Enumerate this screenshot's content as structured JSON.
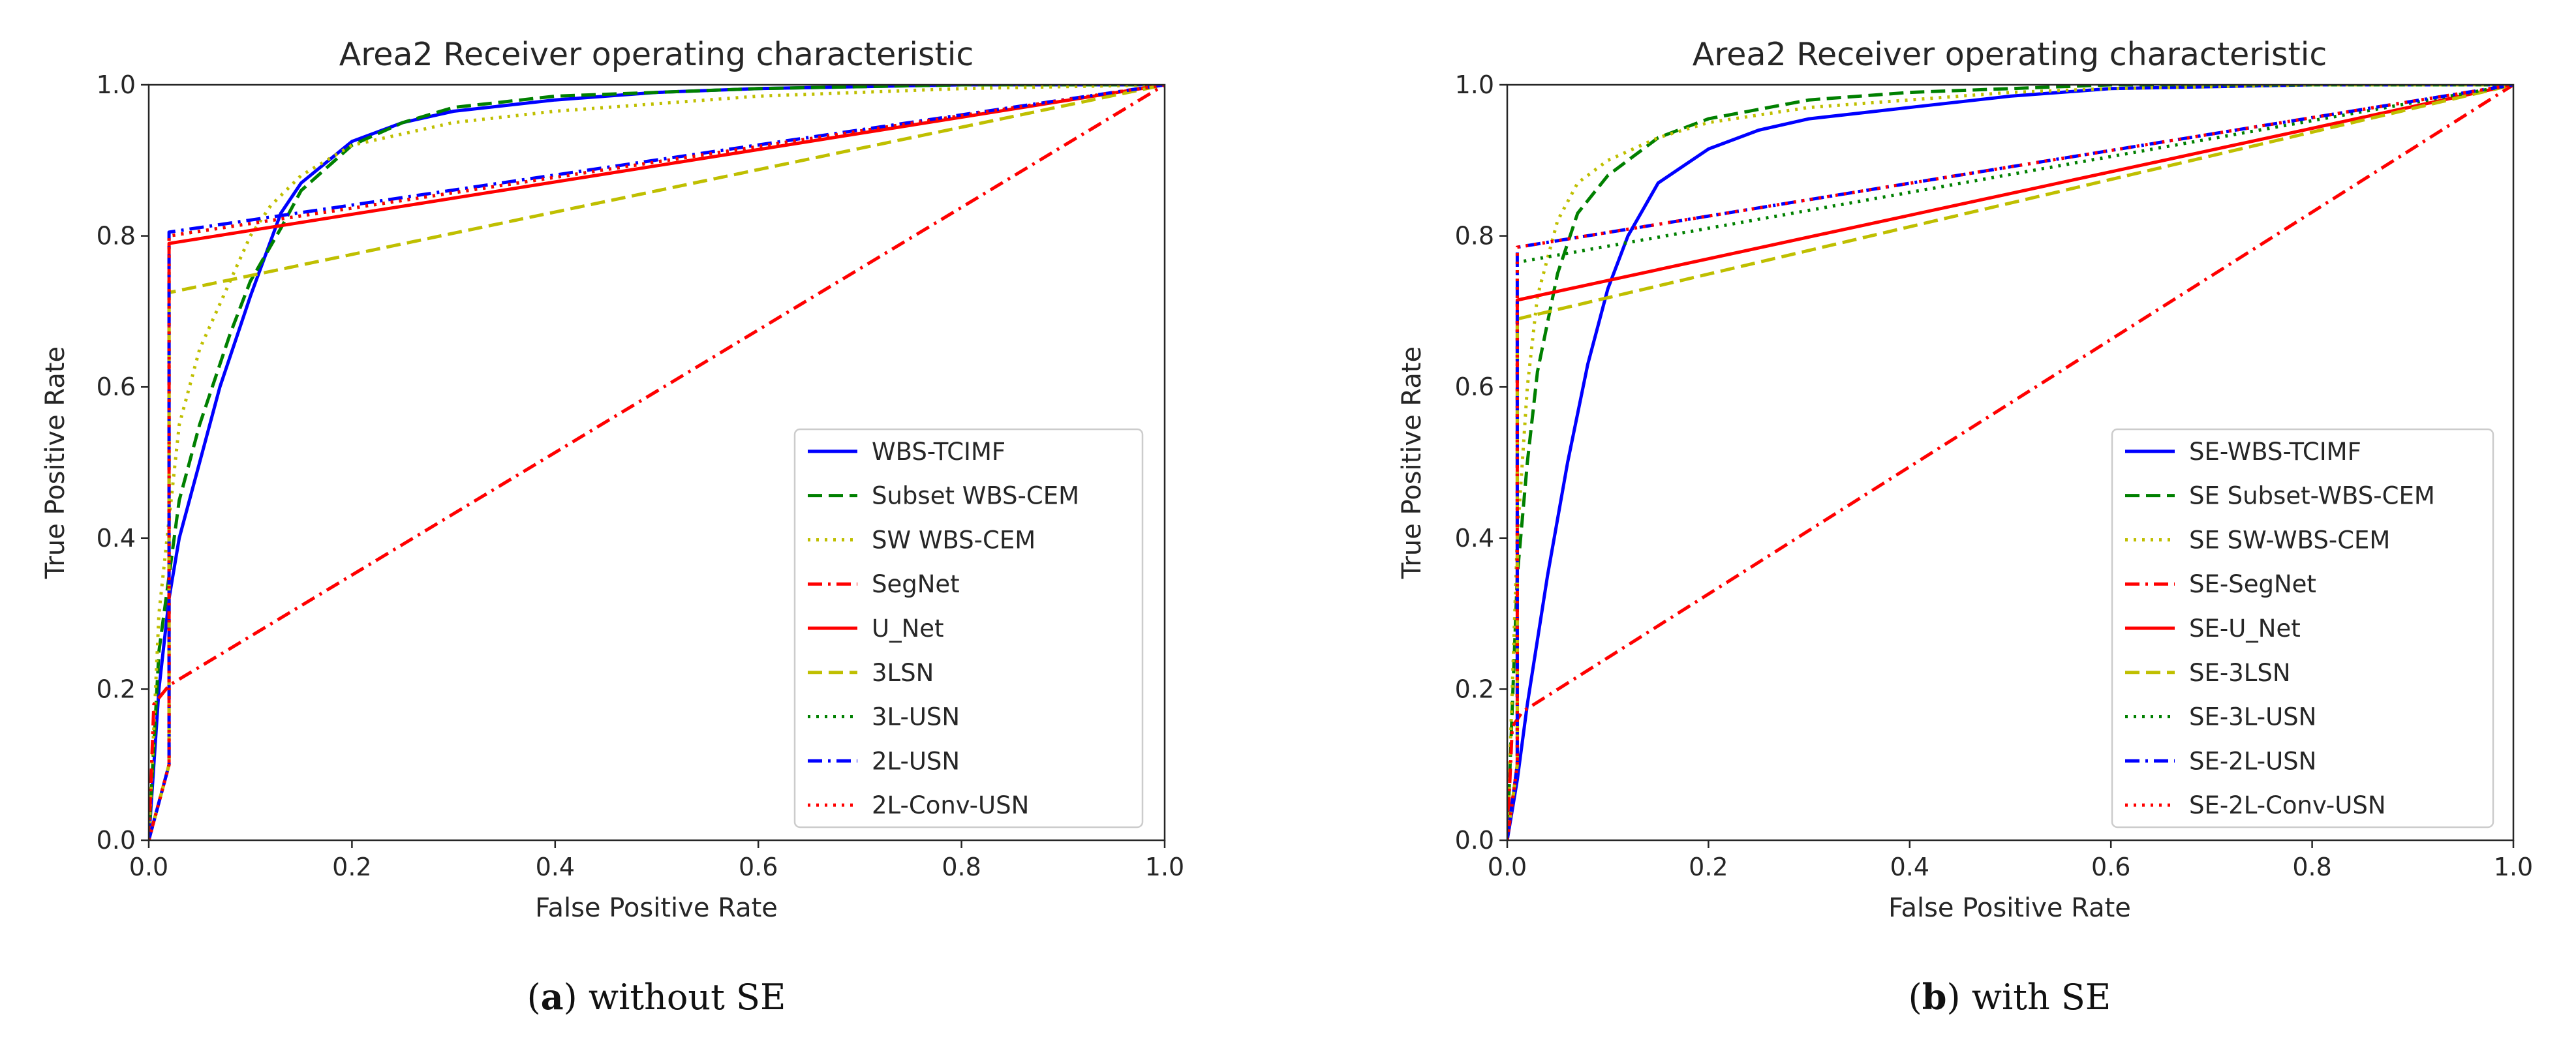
{
  "chart_data": [
    {
      "type": "line",
      "title": "Area2 Receiver operating characteristic",
      "xlabel": "False Positive Rate",
      "ylabel": "True Positive Rate",
      "xlim": [
        0,
        1
      ],
      "ylim": [
        0,
        1
      ],
      "xticks": [
        "0.0",
        "0.2",
        "0.4",
        "0.6",
        "0.8",
        "1.0"
      ],
      "yticks": [
        "0.0",
        "0.2",
        "0.4",
        "0.6",
        "0.8",
        "1.0"
      ],
      "legend_loc": "lower-right",
      "caption": {
        "label": "a",
        "text": " without SE"
      },
      "series": [
        {
          "name": "WBS-TCIMF",
          "color": "#0000ff",
          "dash": "solid",
          "x": [
            0,
            0.01,
            0.02,
            0.03,
            0.05,
            0.07,
            0.1,
            0.13,
            0.15,
            0.2,
            0.25,
            0.3,
            0.4,
            0.5,
            0.6,
            0.8,
            1
          ],
          "y": [
            0,
            0.2,
            0.32,
            0.4,
            0.5,
            0.6,
            0.72,
            0.83,
            0.87,
            0.925,
            0.95,
            0.965,
            0.98,
            0.99,
            0.995,
            1,
            1
          ]
        },
        {
          "name": "Subset WBS-CEM",
          "color": "#008000",
          "dash": "dashed",
          "x": [
            0,
            0.01,
            0.03,
            0.05,
            0.08,
            0.1,
            0.13,
            0.15,
            0.2,
            0.25,
            0.3,
            0.4,
            0.5,
            0.6,
            0.8,
            1
          ],
          "y": [
            0,
            0.25,
            0.45,
            0.55,
            0.67,
            0.74,
            0.81,
            0.86,
            0.92,
            0.95,
            0.97,
            0.985,
            0.99,
            0.995,
            1,
            1
          ]
        },
        {
          "name": "SW WBS-CEM",
          "color": "#bfbf00",
          "dash": "dotted",
          "x": [
            0,
            0.01,
            0.03,
            0.05,
            0.08,
            0.1,
            0.12,
            0.15,
            0.2,
            0.3,
            0.4,
            0.5,
            0.6,
            0.8,
            1
          ],
          "y": [
            0,
            0.3,
            0.55,
            0.65,
            0.74,
            0.8,
            0.84,
            0.88,
            0.92,
            0.95,
            0.965,
            0.975,
            0.985,
            0.995,
            1
          ]
        },
        {
          "name": "SegNet",
          "color": "#ff0000",
          "dash": "dashdot",
          "x": [
            0,
            0.005,
            0.02,
            1
          ],
          "y": [
            0,
            0.18,
            0.205,
            1
          ]
        },
        {
          "name": "U_Net",
          "color": "#ff0000",
          "dash": "solid",
          "x": [
            0,
            0.02,
            0.02,
            1
          ],
          "y": [
            0,
            0.1,
            0.79,
            1
          ]
        },
        {
          "name": "3LSN",
          "color": "#bfbf00",
          "dash": "dashed",
          "x": [
            0,
            0.02,
            0.02,
            1
          ],
          "y": [
            0,
            0.1,
            0.725,
            1
          ]
        },
        {
          "name": "3L-USN",
          "color": "#008000",
          "dash": "dotted",
          "x": [
            0,
            0.02,
            0.02,
            1
          ],
          "y": [
            0,
            0.1,
            0.8,
            1
          ]
        },
        {
          "name": "2L-USN",
          "color": "#0000ff",
          "dash": "dashdot",
          "x": [
            0,
            0.02,
            0.02,
            1
          ],
          "y": [
            0,
            0.1,
            0.805,
            1
          ]
        },
        {
          "name": "2L-Conv-USN",
          "color": "#ff0000",
          "dash": "dotted",
          "x": [
            0,
            0.02,
            0.02,
            1
          ],
          "y": [
            0,
            0.1,
            0.8,
            1
          ]
        }
      ]
    },
    {
      "type": "line",
      "title": "Area2 Receiver operating characteristic",
      "xlabel": "False Positive Rate",
      "ylabel": "True Positive Rate",
      "xlim": [
        0,
        1
      ],
      "ylim": [
        0,
        1
      ],
      "xticks": [
        "0.0",
        "0.2",
        "0.4",
        "0.6",
        "0.8",
        "1.0"
      ],
      "yticks": [
        "0.0",
        "0.2",
        "0.4",
        "0.6",
        "0.8",
        "1.0"
      ],
      "legend_loc": "lower-right",
      "caption": {
        "label": "b",
        "text": " with SE"
      },
      "series": [
        {
          "name": "SE-WBS-TCIMF",
          "color": "#0000ff",
          "dash": "solid",
          "x": [
            0,
            0.01,
            0.02,
            0.04,
            0.06,
            0.08,
            0.1,
            0.12,
            0.15,
            0.2,
            0.25,
            0.3,
            0.4,
            0.5,
            0.6,
            0.8,
            1
          ],
          "y": [
            0,
            0.08,
            0.18,
            0.35,
            0.5,
            0.63,
            0.73,
            0.8,
            0.87,
            0.915,
            0.94,
            0.955,
            0.97,
            0.985,
            0.995,
            1,
            1
          ]
        },
        {
          "name": "SE Subset-WBS-CEM",
          "color": "#008000",
          "dash": "dashed",
          "x": [
            0,
            0.01,
            0.02,
            0.03,
            0.05,
            0.07,
            0.1,
            0.15,
            0.2,
            0.3,
            0.4,
            0.5,
            0.6,
            0.8,
            1
          ],
          "y": [
            0,
            0.35,
            0.5,
            0.62,
            0.75,
            0.83,
            0.88,
            0.93,
            0.955,
            0.98,
            0.99,
            0.995,
            1,
            1,
            1
          ]
        },
        {
          "name": "SE SW-WBS-CEM",
          "color": "#bfbf00",
          "dash": "dotted",
          "x": [
            0,
            0.01,
            0.02,
            0.03,
            0.05,
            0.07,
            0.1,
            0.15,
            0.2,
            0.3,
            0.4,
            0.5,
            0.6,
            0.8,
            1
          ],
          "y": [
            0,
            0.4,
            0.6,
            0.72,
            0.82,
            0.87,
            0.9,
            0.93,
            0.95,
            0.97,
            0.98,
            0.99,
            0.995,
            1,
            1
          ]
        },
        {
          "name": "SE-SegNet",
          "color": "#ff0000",
          "dash": "dashdot",
          "x": [
            0,
            0.005,
            0.015,
            1
          ],
          "y": [
            0,
            0.15,
            0.17,
            1
          ]
        },
        {
          "name": "SE-U_Net",
          "color": "#ff0000",
          "dash": "solid",
          "x": [
            0,
            0.01,
            0.01,
            1
          ],
          "y": [
            0,
            0.1,
            0.715,
            1
          ]
        },
        {
          "name": "SE-3LSN",
          "color": "#bfbf00",
          "dash": "dashed",
          "x": [
            0,
            0.01,
            0.01,
            1
          ],
          "y": [
            0,
            0.1,
            0.69,
            1
          ]
        },
        {
          "name": "SE-3L-USN",
          "color": "#008000",
          "dash": "dotted",
          "x": [
            0,
            0.01,
            0.01,
            1
          ],
          "y": [
            0,
            0.1,
            0.765,
            1
          ]
        },
        {
          "name": "SE-2L-USN",
          "color": "#0000ff",
          "dash": "dashdot",
          "x": [
            0,
            0.01,
            0.01,
            1
          ],
          "y": [
            0,
            0.1,
            0.785,
            1
          ]
        },
        {
          "name": "SE-2L-Conv-USN",
          "color": "#ff0000",
          "dash": "dotted",
          "x": [
            0,
            0.01,
            0.01,
            1
          ],
          "y": [
            0,
            0.1,
            0.785,
            1
          ]
        }
      ]
    }
  ]
}
